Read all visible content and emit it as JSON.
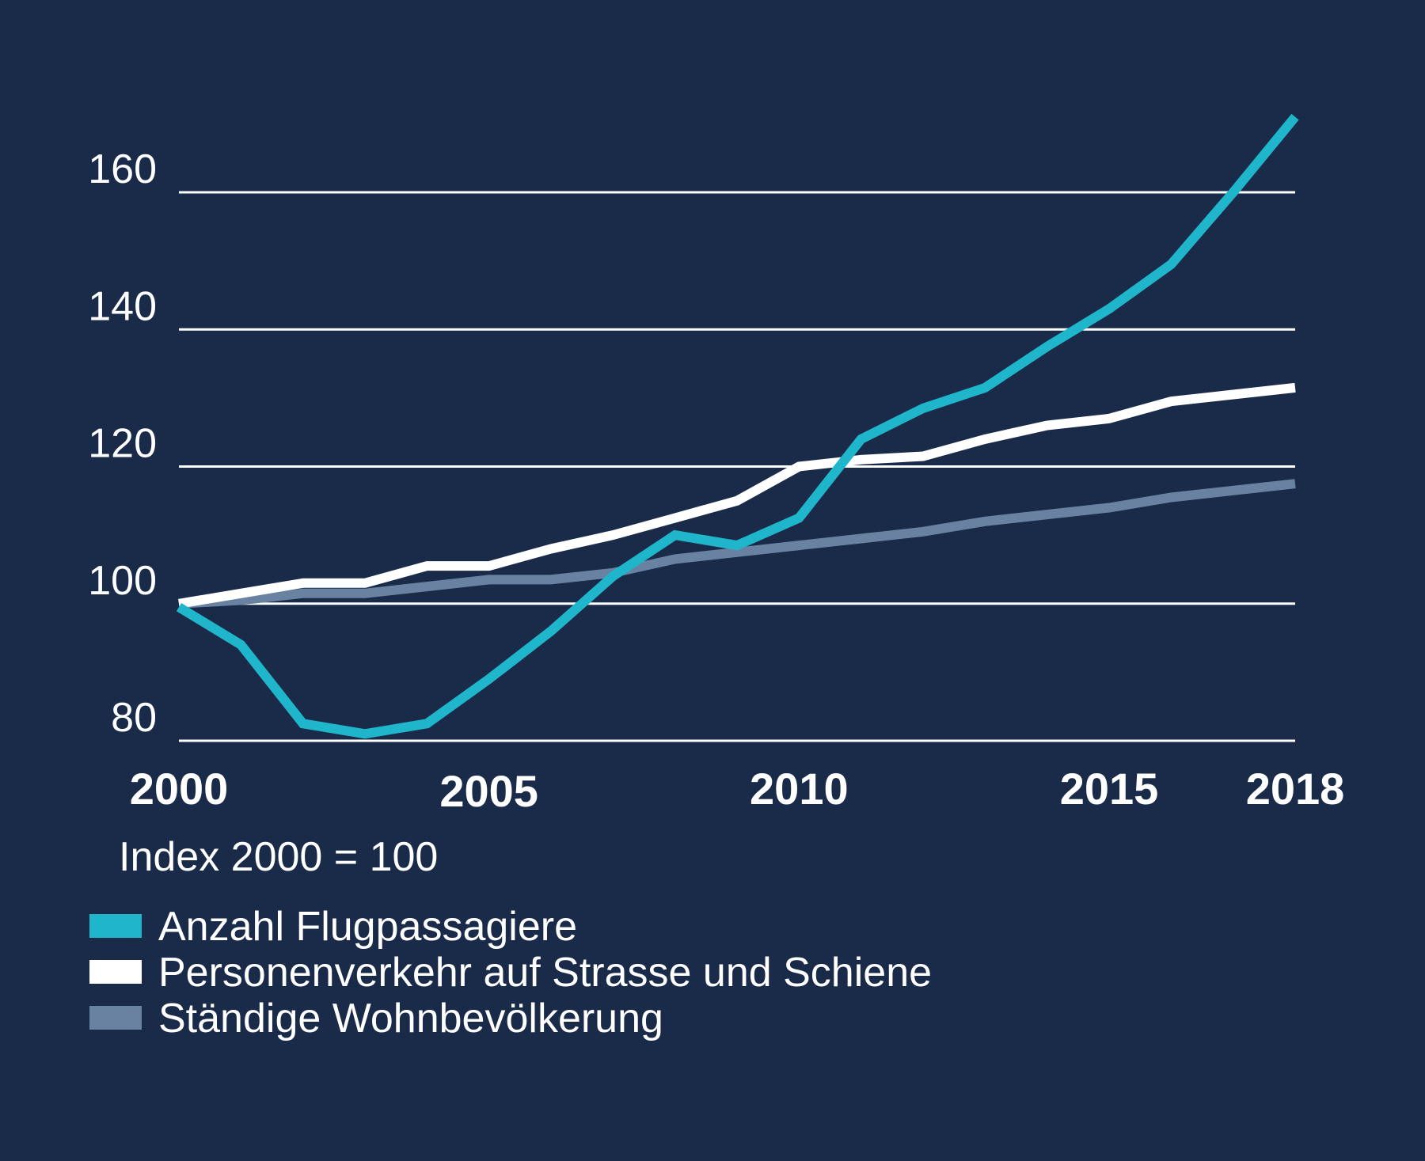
{
  "chart_data": {
    "type": "line",
    "title": "",
    "xlabel": "",
    "ylabel": "",
    "note": "Index 2000 = 100",
    "x": [
      2000,
      2001,
      2002,
      2003,
      2004,
      2005,
      2006,
      2007,
      2008,
      2009,
      2010,
      2011,
      2012,
      2013,
      2014,
      2015,
      2016,
      2017,
      2018
    ],
    "x_ticks": [
      2000,
      2005,
      2010,
      2015,
      2018
    ],
    "x_tick_labels": [
      "2000",
      "2005",
      "2010",
      "2015",
      "2018"
    ],
    "y_ticks": [
      80,
      100,
      120,
      140,
      160
    ],
    "y_tick_labels": [
      "80",
      "100",
      "120",
      "140",
      "160"
    ],
    "ylim": [
      80,
      172
    ],
    "xlim": [
      2000,
      2018
    ],
    "grid": true,
    "legend_position": "bottom-left",
    "series": [
      {
        "name": "Anzahl Flugpassagiere",
        "color": "#1fb6cc",
        "values": [
          99.5,
          94,
          82.5,
          81,
          82.5,
          89,
          96,
          104,
          110,
          108.5,
          112.5,
          124,
          128.5,
          131.5,
          137.5,
          143,
          149.5,
          160,
          171
        ]
      },
      {
        "name": "Personenverkehr auf Strasse und Schiene",
        "color": "#ffffff",
        "values": [
          100,
          101.5,
          103,
          103,
          105.5,
          105.5,
          108,
          110,
          112.5,
          115,
          120,
          121,
          121.5,
          124,
          126,
          127,
          129.5,
          130.5,
          131.5
        ]
      },
      {
        "name": "Ständige Wohnbevölkerung",
        "color": "#6a82a2",
        "values": [
          100,
          100.5,
          101.5,
          101.5,
          102.5,
          103.5,
          103.5,
          104.5,
          106.5,
          107.5,
          108.5,
          109.5,
          110.5,
          112,
          113,
          114,
          115.5,
          116.5,
          117.5
        ]
      }
    ]
  }
}
